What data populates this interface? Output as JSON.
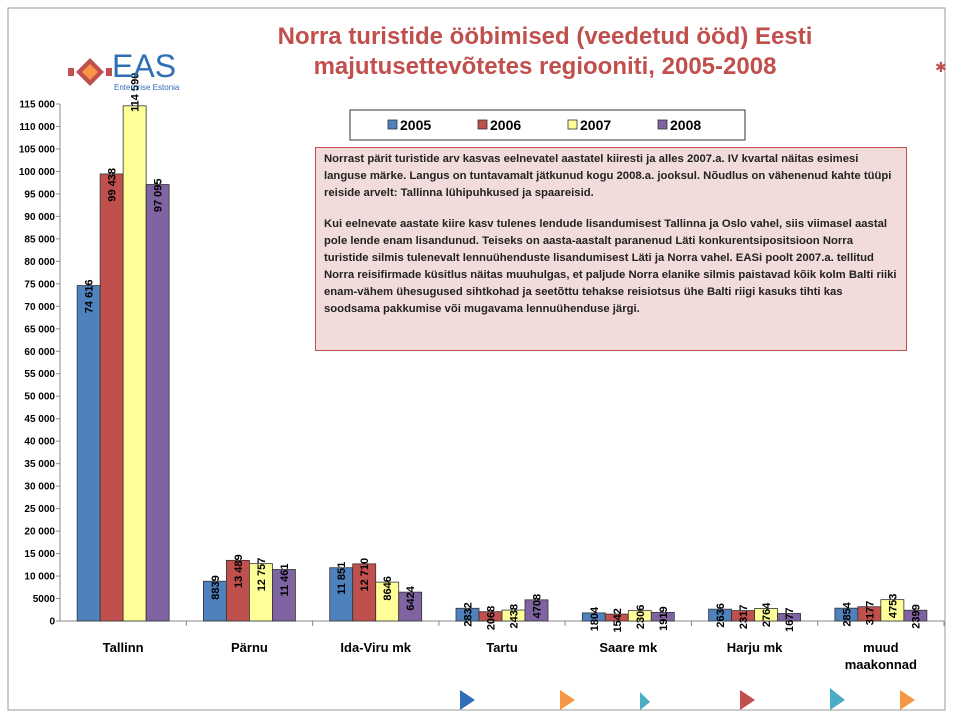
{
  "logo": {
    "name": "EAS",
    "subtitle": "Enterprise Estonia"
  },
  "note": [
    "Norrast pärit turistide arv kasvas eelnevatel aastatel kiiresti ja alles 2007.a. IV kvartal näitas esimesi languse märke. Langus on tuntavamalt jätkunud kogu 2008.a. jooksul. Nõudlus on vähenenud kahte tüüpi reiside arvelt: Tallinna lühipuhkused ja spaareisid.",
    "Kui eelnevate aastate kiire kasv tulenes lendude lisandumisest Tallinna ja Oslo vahel, siis viimasel aastal pole lende enam lisandunud. Teiseks on aasta-aastalt paranenud Läti konkurentsipositsioon Norra turistide silmis tulenevalt lennuühenduste lisandumisest Läti ja Norra vahel. EASi poolt 2007.a. tellitud Norra reisifirmade küsitlus näitas muuhulgas, et paljude Norra elanike silmis paistavad kõik kolm Balti riiki enam-vähem ühesugused sihtkohad ja seetõttu tehakse reisiotsus ühe Balti riigi kasuks tihti kas soodsama pakkumise või mugavama lennuühenduse järgi."
  ],
  "chart_data": {
    "type": "bar",
    "title": "Norra turistide ööbimised (veedetud ööd) Eesti majutusettevõtetes regiooniti, 2005-2008",
    "categories": [
      "Tallinn",
      "Pärnu",
      "Ida-Viru mk",
      "Tartu",
      "Saare mk",
      "Harju mk",
      "muud maakonnad"
    ],
    "series": [
      {
        "name": "2005",
        "color": "#4f81bd",
        "values": [
          74616,
          8839,
          11851,
          2832,
          1804,
          2636,
          2854
        ],
        "value_labels": [
          "74 616",
          "8839",
          "11 851",
          "2832",
          "1804",
          "2636",
          "2854"
        ]
      },
      {
        "name": "2006",
        "color": "#c0504d",
        "values": [
          99438,
          13489,
          12710,
          2068,
          1542,
          2317,
          3177
        ],
        "value_labels": [
          "99 438",
          "13 489",
          "12 710",
          "2068",
          "1542",
          "2317",
          "3177"
        ]
      },
      {
        "name": "2007",
        "color": "#ffff99",
        "values": [
          114590,
          12757,
          8646,
          2438,
          2306,
          2764,
          4753
        ],
        "value_labels": [
          "114 590",
          "12 757",
          "8646",
          "2438",
          "2306",
          "2764",
          "4753"
        ]
      },
      {
        "name": "2008",
        "color": "#8064a2",
        "values": [
          97095,
          11461,
          6424,
          4708,
          1919,
          1677,
          2399
        ],
        "value_labels": [
          "97 095",
          "11 461",
          "6424",
          "4708",
          "1919",
          "1677",
          "2399"
        ]
      }
    ],
    "ylim": [
      0,
      115000
    ],
    "yticks": [
      0,
      5000,
      {
        "value": 10000,
        "label": "10 000"
      },
      {
        "value": 15000,
        "label": "15 000"
      },
      {
        "value": 20000,
        "label": "20 000"
      },
      {
        "value": 25000,
        "label": "25 000"
      },
      {
        "value": 30000,
        "label": "30 000"
      },
      {
        "value": 35000,
        "label": "35 000"
      },
      {
        "value": 40000,
        "label": "40 000"
      },
      {
        "value": 45000,
        "label": "45 000"
      },
      {
        "value": 50000,
        "label": "50 000"
      },
      {
        "value": 55000,
        "label": "55 000"
      },
      {
        "value": 60000,
        "label": "60 000"
      },
      {
        "value": 65000,
        "label": "65 000"
      },
      {
        "value": 70000,
        "label": "70 000"
      },
      {
        "value": 75000,
        "label": "75 000"
      },
      {
        "value": 80000,
        "label": "80 000"
      },
      {
        "value": 85000,
        "label": "85 000"
      },
      {
        "value": 90000,
        "label": "90 000"
      },
      {
        "value": 95000,
        "label": "95 000"
      },
      {
        "value": 100000,
        "label": "100 000"
      },
      {
        "value": 105000,
        "label": "105 000"
      },
      {
        "value": 110000,
        "label": "110 000"
      },
      {
        "value": 115000,
        "label": "115 000"
      }
    ],
    "grid": false,
    "legend": "top"
  }
}
